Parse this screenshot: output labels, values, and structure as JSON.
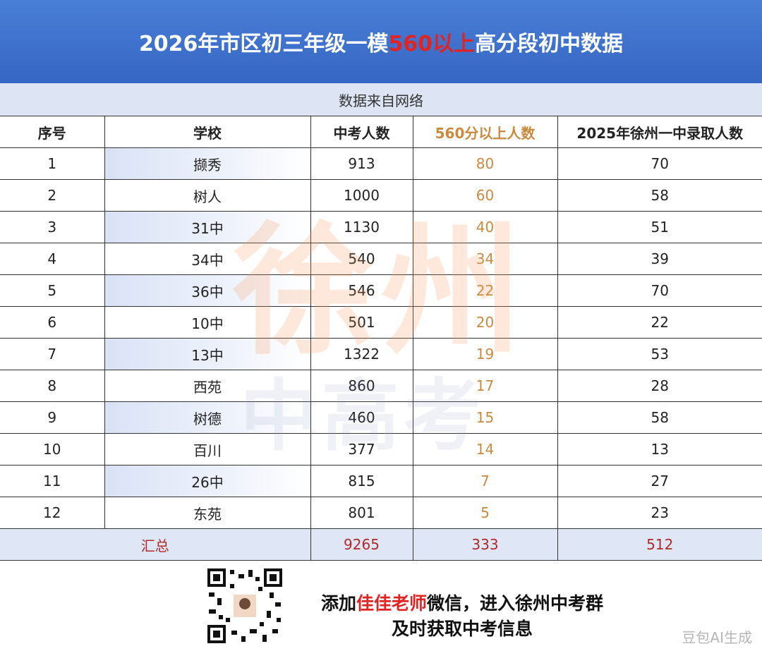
{
  "header": {
    "title": [
      "2026年市区初三年级一模",
      "560以上",
      "高分段初中数据"
    ],
    "subtitle": "数据来自网络"
  },
  "table": {
    "columns": [
      "序号",
      "学校",
      "中考人数",
      "560分以上人数",
      "2025年徐州一中录取人数"
    ],
    "rows": [
      [
        1,
        "撷秀",
        913,
        80,
        70
      ],
      [
        2,
        "树人",
        1000,
        60,
        58
      ],
      [
        3,
        "31中",
        1130,
        40,
        51
      ],
      [
        4,
        "34中",
        540,
        34,
        39
      ],
      [
        5,
        "36中",
        546,
        22,
        70
      ],
      [
        6,
        "10中",
        501,
        20,
        22
      ],
      [
        7,
        "13中",
        1322,
        19,
        53
      ],
      [
        8,
        "西苑",
        860,
        17,
        28
      ],
      [
        9,
        "树德",
        460,
        15,
        58
      ],
      [
        10,
        "百川",
        377,
        14,
        13
      ],
      [
        11,
        "26中",
        815,
        7,
        27
      ],
      [
        12,
        "东苑",
        801,
        5,
        23
      ]
    ],
    "total": [
      "汇总",
      9265,
      333,
      512
    ]
  },
  "watermarks": [
    "徐州",
    "中高考",
    "豆包AI生成"
  ],
  "footer": {
    "line1": [
      "添加",
      "佳佳老师",
      "微信，进入徐州中考群"
    ],
    "line2": "及时获取中考信息"
  }
}
